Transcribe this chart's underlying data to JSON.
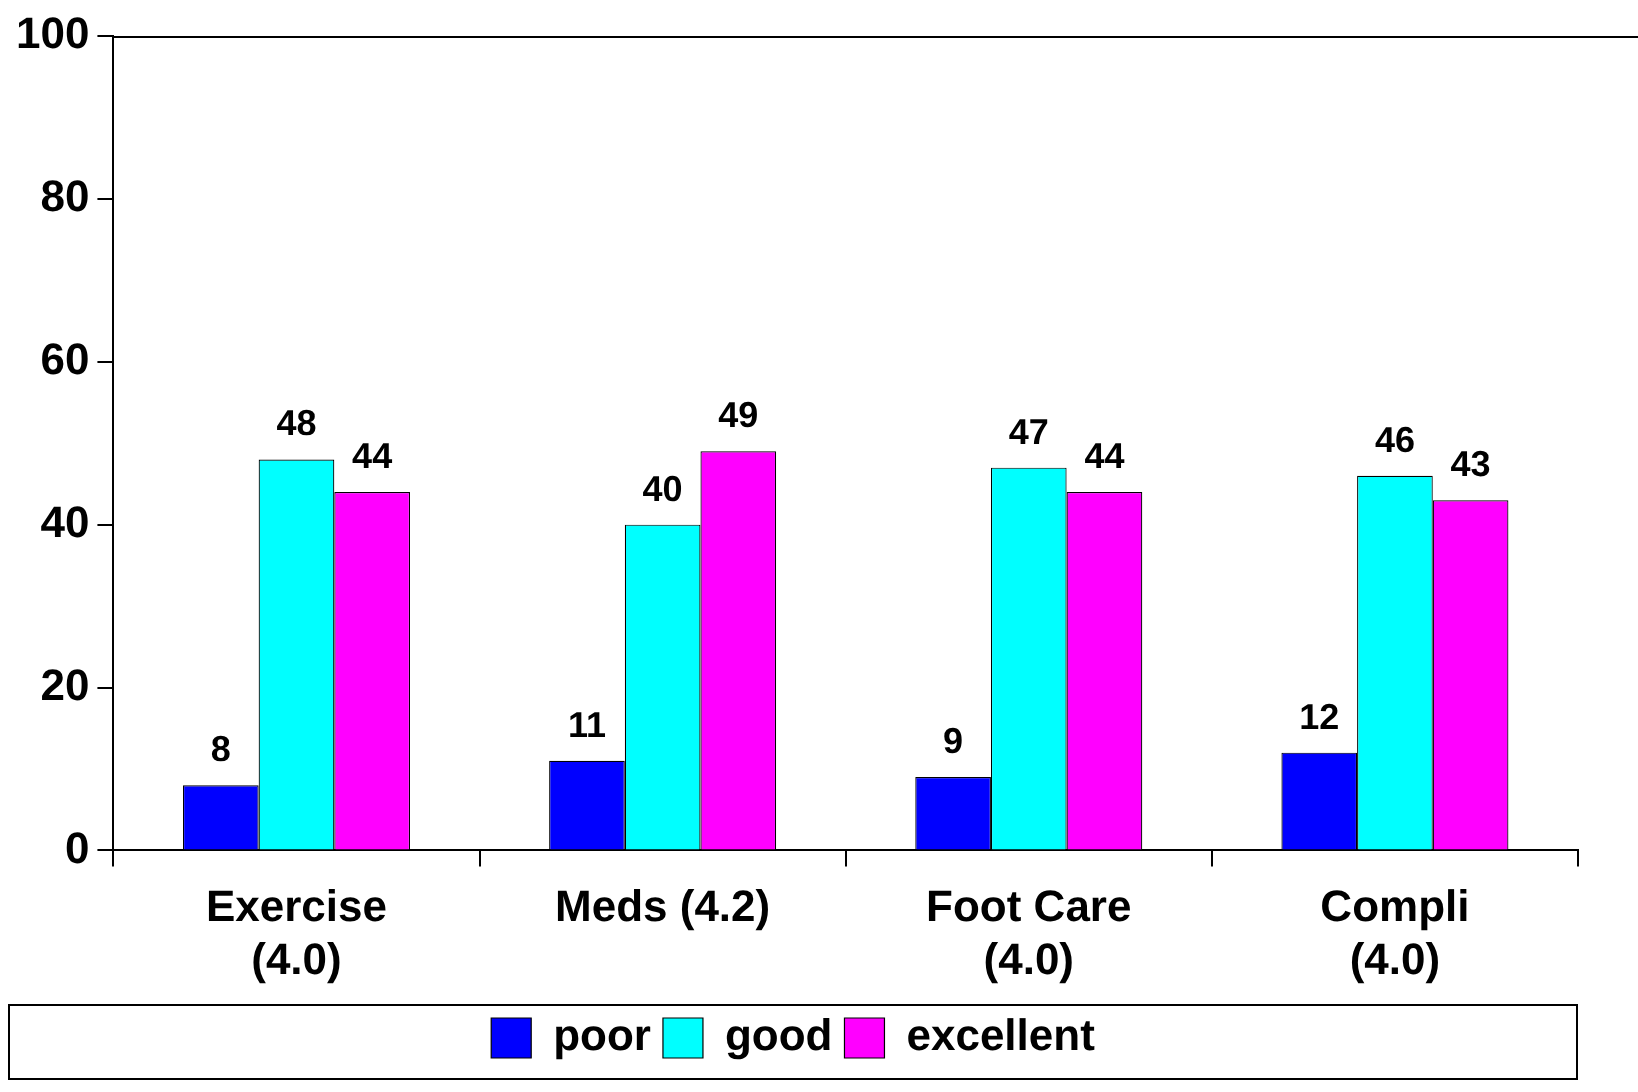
{
  "chart_data": {
    "type": "bar",
    "categories": [
      "Exercise\n(4.0)",
      "Meds (4.2)",
      "Foot Care\n(4.0)",
      "Compli\n(4.0)"
    ],
    "series": [
      {
        "name": "poor",
        "color": "#0000ff",
        "values": [
          8,
          11,
          9,
          12
        ]
      },
      {
        "name": "good",
        "color": "#00ffff",
        "values": [
          48,
          40,
          47,
          46
        ]
      },
      {
        "name": "excellent",
        "color": "#ff00ff",
        "values": [
          44,
          49,
          44,
          43
        ]
      }
    ],
    "ylim": [
      0,
      100
    ],
    "yticks": [
      0,
      20,
      40,
      60,
      80,
      100
    ],
    "grid": false,
    "legend": "bottom",
    "data_labels": true
  }
}
